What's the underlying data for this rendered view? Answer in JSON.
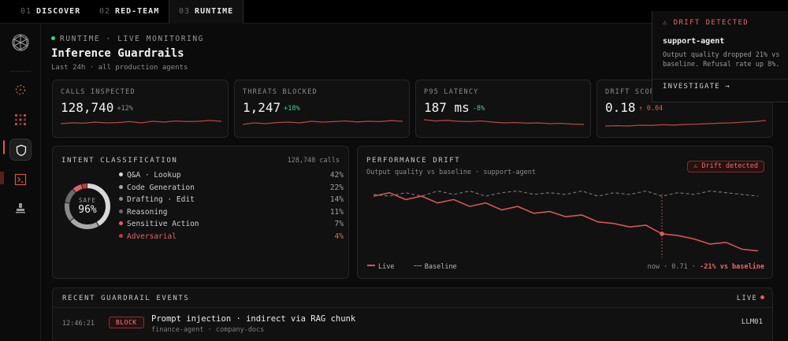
{
  "tabs": [
    {
      "num": "01",
      "label": "DISCOVER"
    },
    {
      "num": "02",
      "label": "RED-TEAM"
    },
    {
      "num": "03",
      "label": "RUNTIME"
    }
  ],
  "header": {
    "status": "RUNTIME · LIVE MONITORING",
    "title": "Inference Guardrails",
    "subtitle": "Last 24h · all production agents"
  },
  "metrics": [
    {
      "label": "CALLS INSPECTED",
      "value": "128,740",
      "delta": "+12%",
      "tone": "neutral",
      "spark": [
        0.45,
        0.5,
        0.48,
        0.55,
        0.5,
        0.52,
        0.58,
        0.5,
        0.6,
        0.55,
        0.62,
        0.58,
        0.6,
        0.65,
        0.6
      ]
    },
    {
      "label": "THREATS BLOCKED",
      "value": "1,247",
      "delta": "+18%",
      "tone": "good",
      "spark": [
        0.4,
        0.5,
        0.45,
        0.52,
        0.55,
        0.5,
        0.6,
        0.55,
        0.58,
        0.62,
        0.56,
        0.6,
        0.58,
        0.64,
        0.6
      ]
    },
    {
      "label": "P95 LATENCY",
      "value": "187 ms",
      "delta": "-8%",
      "tone": "good",
      "spark": [
        0.7,
        0.62,
        0.66,
        0.6,
        0.58,
        0.62,
        0.55,
        0.5,
        0.52,
        0.48,
        0.5,
        0.45,
        0.47,
        0.42,
        0.4
      ]
    },
    {
      "label": "DRIFT SCORE",
      "value": "0.18",
      "delta": "↑ 0.04",
      "tone": "bad",
      "spark": [
        0.3,
        0.32,
        0.3,
        0.35,
        0.34,
        0.38,
        0.36,
        0.4,
        0.42,
        0.45,
        0.48,
        0.5,
        0.55,
        0.58,
        0.65
      ]
    }
  ],
  "intent": {
    "title": "INTENT CLASSIFICATION",
    "total": "128,740 calls",
    "donut_label": "SAFE",
    "donut_value": "96%",
    "safe_fraction": 0.96,
    "items": [
      {
        "label": "Q&A · Lookup",
        "pct": "42%",
        "share": 0.42,
        "color": "#d8d8d8"
      },
      {
        "label": "Code Generation",
        "pct": "22%",
        "share": 0.22,
        "color": "#a8a8a8"
      },
      {
        "label": "Drafting · Edit",
        "pct": "14%",
        "share": 0.14,
        "color": "#8a8a8a"
      },
      {
        "label": "Reasoning",
        "pct": "11%",
        "share": 0.11,
        "color": "#6a6a6a"
      },
      {
        "label": "Sensitive Action",
        "pct": "7%",
        "share": 0.07,
        "color": "#e06060"
      },
      {
        "label": "Adversarial",
        "pct": "4%",
        "share": 0.04,
        "color": "#c23a3a"
      }
    ]
  },
  "performance": {
    "title": "PERFORMANCE DRIFT",
    "subtitle": "Output quality vs baseline · support-agent",
    "badge": "Drift detected",
    "legend_live": "Live",
    "legend_baseline": "Baseline",
    "footer": "now · 0.71 · ",
    "footer_delta": "-21% vs baseline"
  },
  "events": {
    "title": "RECENT GUARDRAIL EVENTS",
    "live": "LIVE",
    "rows": [
      {
        "time": "12:46:21",
        "action": "BLOCK",
        "title": "Prompt injection · indirect via RAG chunk",
        "meta": "finance-agent · company-docs",
        "code": "LLM01"
      }
    ]
  },
  "toast": {
    "header": "DRIFT DETECTED",
    "agent": "support-agent",
    "message": "Output quality dropped 21% vs baseline. Refusal rate up 8%.",
    "action": "INVESTIGATE →"
  },
  "chart_data": {
    "type": "line",
    "title": "PERFORMANCE DRIFT",
    "x": [
      1,
      2,
      3,
      4,
      5,
      6,
      7,
      8,
      9,
      10,
      11,
      12,
      13,
      14,
      15,
      16,
      17,
      18,
      19,
      20,
      21,
      22,
      23,
      24,
      25
    ],
    "ylim": [
      0.6,
      1.0
    ],
    "series": [
      {
        "name": "Live",
        "values": [
          0.94,
          0.96,
          0.92,
          0.94,
          0.9,
          0.92,
          0.88,
          0.9,
          0.86,
          0.88,
          0.84,
          0.85,
          0.82,
          0.83,
          0.79,
          0.78,
          0.76,
          0.77,
          0.72,
          0.71,
          0.69,
          0.66,
          0.67,
          0.63,
          0.62
        ]
      },
      {
        "name": "Baseline",
        "values": [
          0.95,
          0.94,
          0.96,
          0.94,
          0.97,
          0.95,
          0.97,
          0.94,
          0.96,
          0.97,
          0.95,
          0.96,
          0.95,
          0.97,
          0.94,
          0.96,
          0.95,
          0.97,
          0.94,
          0.96,
          0.95,
          0.97,
          0.96,
          0.95,
          0.94
        ]
      }
    ],
    "marker_index": 18,
    "legend": "bottom-left",
    "grid": false
  },
  "colors": {
    "accent_red": "#e05a5a",
    "good_green": "#3ecf8e",
    "bg": "#0a0a0a",
    "card": "#111111"
  }
}
